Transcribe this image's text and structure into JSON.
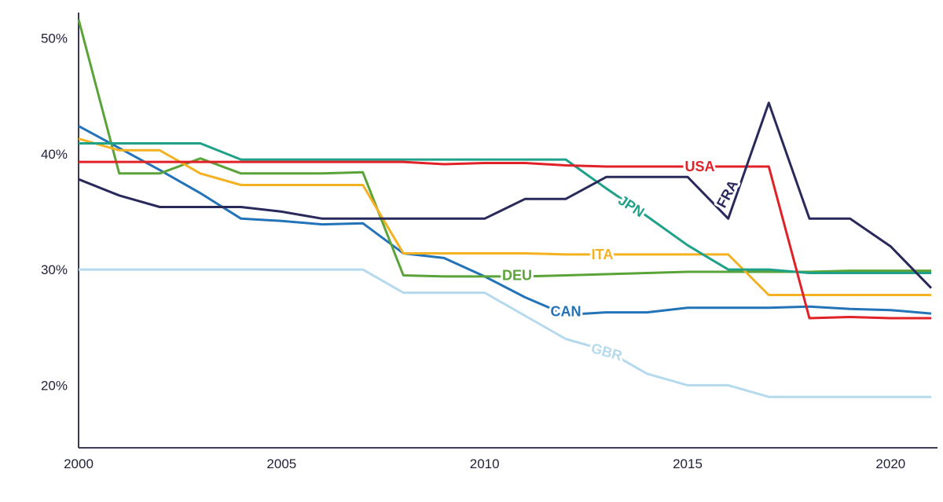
{
  "chart_data": {
    "type": "line",
    "x": [
      2000,
      2001,
      2002,
      2003,
      2004,
      2005,
      2006,
      2007,
      2008,
      2009,
      2010,
      2011,
      2012,
      2013,
      2014,
      2015,
      2016,
      2017,
      2018,
      2019,
      2020,
      2021
    ],
    "xticks": [
      2000,
      2005,
      2010,
      2015,
      2020
    ],
    "yticks": [
      20,
      30,
      40,
      50
    ],
    "ytick_suffix": "%",
    "xlim": [
      2000,
      2021
    ],
    "ylim": [
      14.6,
      52.2
    ],
    "grid": false,
    "legend_position": "inline-labels",
    "axis_color": "#23233f",
    "tick_label_color": "#22223a",
    "series": [
      {
        "name": "GBR",
        "color": "#b5d9ed",
        "label": {
          "x": 2013.0,
          "y": 22.8,
          "rot": 16
        },
        "values": [
          30,
          30,
          30,
          30,
          30,
          30,
          30,
          30,
          28,
          28,
          28,
          26,
          24,
          23,
          21,
          20,
          20,
          19,
          19,
          19,
          19,
          19
        ]
      },
      {
        "name": "CAN",
        "color": "#2273b8",
        "label": {
          "x": 2012.0,
          "y": 26.3,
          "rot": 0
        },
        "values": [
          42.4,
          40.5,
          38.6,
          36.6,
          34.4,
          34.2,
          33.9,
          34.0,
          31.4,
          31.0,
          29.4,
          27.6,
          26.1,
          26.3,
          26.3,
          26.7,
          26.7,
          26.7,
          26.8,
          26.6,
          26.5,
          26.2
        ]
      },
      {
        "name": "DEU",
        "color": "#5aa338",
        "label": {
          "x": 2010.8,
          "y": 29.4,
          "rot": 0
        },
        "values": [
          51.6,
          38.3,
          38.3,
          39.6,
          38.3,
          38.3,
          38.3,
          38.4,
          29.5,
          29.4,
          29.4,
          29.4,
          29.5,
          29.6,
          29.7,
          29.8,
          29.8,
          29.8,
          29.8,
          29.9,
          29.9,
          29.9
        ]
      },
      {
        "name": "ITA",
        "color": "#f4b223",
        "label": {
          "x": 2012.9,
          "y": 31.2,
          "rot": 0
        },
        "values": [
          41.3,
          40.3,
          40.3,
          38.3,
          37.3,
          37.3,
          37.3,
          37.3,
          31.4,
          31.4,
          31.4,
          31.4,
          31.3,
          31.3,
          31.3,
          31.3,
          31.3,
          27.8,
          27.8,
          27.8,
          27.8,
          27.8
        ]
      },
      {
        "name": "JPN",
        "color": "#1fa189",
        "label": {
          "x": 2013.6,
          "y": 35.4,
          "rot": 33
        },
        "values": [
          40.9,
          40.9,
          40.9,
          40.9,
          39.5,
          39.5,
          39.5,
          39.5,
          39.5,
          39.5,
          39.5,
          39.5,
          39.5,
          37.0,
          34.6,
          32.1,
          30.0,
          30.0,
          29.7,
          29.7,
          29.7,
          29.7
        ]
      },
      {
        "name": "USA",
        "color": "#e02127",
        "label": {
          "x": 2015.3,
          "y": 38.8,
          "rot": 0
        },
        "values": [
          39.3,
          39.3,
          39.3,
          39.3,
          39.3,
          39.3,
          39.3,
          39.3,
          39.3,
          39.1,
          39.2,
          39.2,
          39.0,
          38.9,
          38.9,
          38.9,
          38.9,
          38.9,
          25.8,
          25.9,
          25.8,
          25.8
        ]
      },
      {
        "name": "FRA",
        "color": "#2a295c",
        "label": {
          "x": 2016.0,
          "y": 36.5,
          "rot": -62
        },
        "values": [
          37.8,
          36.4,
          35.4,
          35.4,
          35.4,
          35.0,
          34.4,
          34.4,
          34.4,
          34.4,
          34.4,
          36.1,
          36.1,
          38.0,
          38.0,
          38.0,
          34.4,
          44.4,
          34.4,
          34.4,
          32.0,
          28.4
        ]
      }
    ]
  }
}
